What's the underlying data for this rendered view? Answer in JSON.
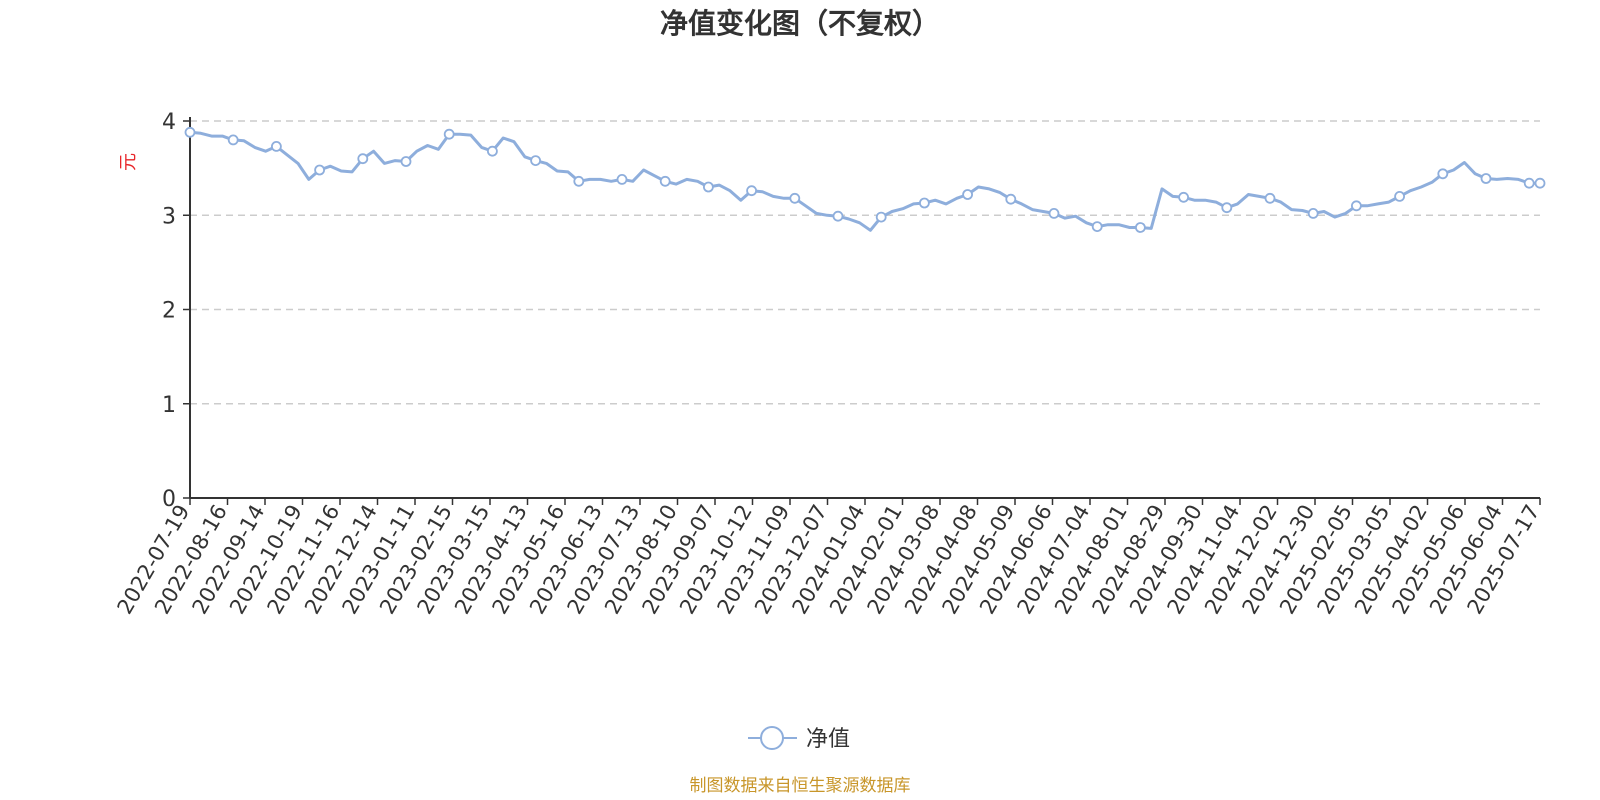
{
  "colors": {
    "series": "#8eaedc",
    "axis": "#333333",
    "grid": "#cccccc",
    "ylabel": "#e8262a",
    "source": "#c8962a"
  },
  "footer": {
    "source_text": "制图数据来自恒生聚源数据库"
  },
  "chart_data": {
    "type": "line",
    "title": "净值变化图（不复权）",
    "ylabel": "元",
    "ylim": [
      0,
      4
    ],
    "yticks": [
      0,
      1,
      2,
      3,
      4
    ],
    "grid": true,
    "legend_position": "bottom-center",
    "x_ticks": [
      "2022-07-19",
      "2022-08-16",
      "2022-09-14",
      "2022-10-19",
      "2022-11-16",
      "2022-12-14",
      "2023-01-11",
      "2023-02-15",
      "2023-03-15",
      "2023-04-13",
      "2023-05-16",
      "2023-06-13",
      "2023-07-13",
      "2023-08-10",
      "2023-09-07",
      "2023-10-12",
      "2023-11-09",
      "2023-12-07",
      "2024-01-04",
      "2024-02-01",
      "2024-03-08",
      "2024-04-08",
      "2024-05-09",
      "2024-06-06",
      "2024-07-04",
      "2024-08-01",
      "2024-08-29",
      "2024-09-30",
      "2024-11-04",
      "2024-12-02",
      "2024-12-30",
      "2025-02-05",
      "2025-03-05",
      "2025-04-02",
      "2025-05-06",
      "2025-06-04",
      "2025-07-17"
    ],
    "series": [
      {
        "name": "净值",
        "values": [
          3.88,
          3.87,
          3.84,
          3.84,
          3.8,
          3.79,
          3.72,
          3.68,
          3.73,
          3.64,
          3.55,
          3.38,
          3.48,
          3.52,
          3.47,
          3.46,
          3.6,
          3.68,
          3.55,
          3.58,
          3.57,
          3.68,
          3.74,
          3.7,
          3.86,
          3.86,
          3.85,
          3.72,
          3.68,
          3.82,
          3.78,
          3.62,
          3.58,
          3.55,
          3.47,
          3.46,
          3.36,
          3.38,
          3.38,
          3.36,
          3.38,
          3.36,
          3.48,
          3.42,
          3.36,
          3.33,
          3.38,
          3.36,
          3.3,
          3.32,
          3.26,
          3.16,
          3.26,
          3.25,
          3.2,
          3.18,
          3.18,
          3.1,
          3.02,
          3.0,
          2.99,
          2.96,
          2.92,
          2.84,
          2.98,
          3.04,
          3.07,
          3.12,
          3.13,
          3.16,
          3.12,
          3.18,
          3.22,
          3.3,
          3.28,
          3.24,
          3.17,
          3.12,
          3.06,
          3.04,
          3.02,
          2.97,
          2.99,
          2.92,
          2.88,
          2.9,
          2.9,
          2.87,
          2.87,
          2.86,
          3.28,
          3.2,
          3.19,
          3.16,
          3.16,
          3.14,
          3.08,
          3.12,
          3.22,
          3.2,
          3.18,
          3.14,
          3.06,
          3.05,
          3.02,
          3.04,
          2.98,
          3.02,
          3.1,
          3.1,
          3.12,
          3.14,
          3.2,
          3.26,
          3.3,
          3.35,
          3.44,
          3.48,
          3.56,
          3.44,
          3.39,
          3.38,
          3.39,
          3.38,
          3.34,
          3.34
        ]
      }
    ]
  }
}
